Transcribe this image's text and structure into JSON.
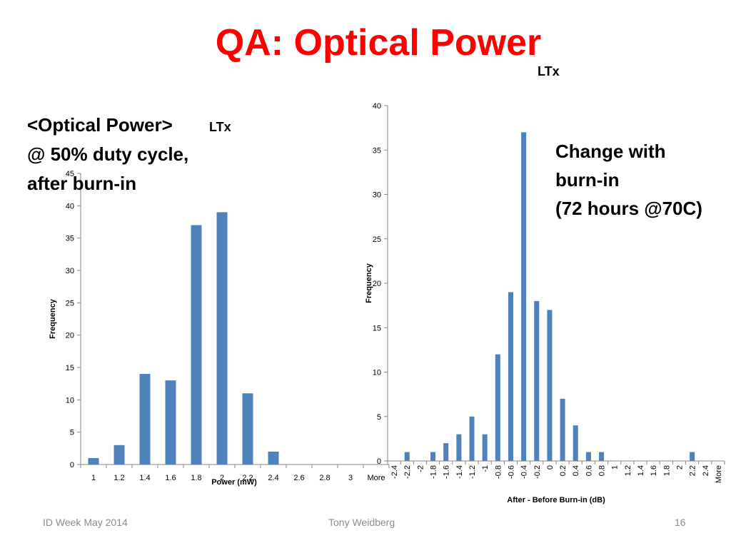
{
  "slide": {
    "title": "QA: Optical Power",
    "ltx_top": "LTx",
    "left_caption": [
      "<Optical Power>",
      "@ 50% duty cycle,",
      "after burn-in"
    ],
    "ltx_left": "LTx",
    "right_caption": [
      "Change with",
      "burn-in",
      "(72 hours @70C)"
    ],
    "footer": {
      "left": "ID Week May 2014",
      "center": "Tony Weidberg",
      "right": "16"
    },
    "colors": {
      "title": "#ff0000",
      "bar": "#4f81bd",
      "footer": "#8c8c8c"
    }
  },
  "chart_data": [
    {
      "type": "bar",
      "categories": [
        "1",
        "1.2",
        "1.4",
        "1.6",
        "1.8",
        "2",
        "2.2",
        "2.4",
        "2.6",
        "2.8",
        "3",
        "More"
      ],
      "values": [
        1,
        3,
        14,
        13,
        37,
        39,
        11,
        2,
        0,
        0,
        0,
        0
      ],
      "ylim": [
        0,
        45
      ],
      "yticks": [
        0,
        5,
        10,
        15,
        20,
        25,
        30,
        35,
        40,
        45
      ],
      "xlabel": "Power (mW)",
      "ylabel": "Frequency",
      "grid": false,
      "legend": "none"
    },
    {
      "type": "bar",
      "categories": [
        "-2.4",
        "-2.2",
        "-2",
        "-1.8",
        "-1.6",
        "-1.4",
        "-1.2",
        "-1",
        "-0.8",
        "-0.6",
        "-0.4",
        "-0.2",
        "0",
        "0.2",
        "0.4",
        "0.6",
        "0.8",
        "1",
        "1.2",
        "1.4",
        "1.6",
        "1.8",
        "2",
        "2.2",
        "2.4",
        "More"
      ],
      "values": [
        0,
        1,
        0,
        1,
        2,
        3,
        5,
        3,
        12,
        19,
        37,
        18,
        17,
        7,
        4,
        1,
        1,
        0,
        0,
        0,
        0,
        0,
        0,
        1,
        0,
        0
      ],
      "ylim": [
        0,
        40
      ],
      "yticks": [
        0,
        5,
        10,
        15,
        20,
        25,
        30,
        35,
        40
      ],
      "xlabel": "After - Before Burn-in (dB)",
      "ylabel": "Frequency",
      "grid": false,
      "legend": "none"
    }
  ]
}
